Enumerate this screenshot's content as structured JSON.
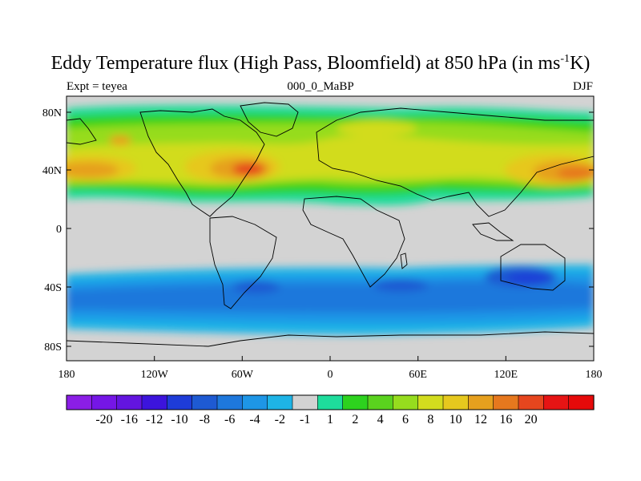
{
  "title": {
    "main": "Eddy Temperature flux (High Pass, Bloomfield) at 850 hPa (in ms",
    "sup": "-1",
    "tail": "K)"
  },
  "subtitle": {
    "left": "Expt = teyea",
    "center": "000_0_MaBP",
    "right": "DJF"
  },
  "map": {
    "land_color": "#d3d3d3",
    "lat_ticks": [
      "80N",
      "40N",
      "0",
      "40S",
      "80S"
    ],
    "lat_values": [
      80,
      40,
      0,
      -40,
      -80
    ],
    "lon_ticks": [
      "180",
      "120W",
      "60W",
      "0",
      "60E",
      "120E",
      "180"
    ],
    "lon_values": [
      -180,
      -120,
      -60,
      0,
      60,
      120,
      180
    ]
  },
  "colorbar": {
    "colors": [
      "#8b1ee6",
      "#7516e6",
      "#6315df",
      "#3c14dc",
      "#1e3cd8",
      "#1e5ad2",
      "#1e78dc",
      "#1e96e6",
      "#1eb4e6",
      "#d2d2d2",
      "#1edc9c",
      "#2dd21e",
      "#5ad21e",
      "#96dc1e",
      "#d2dc1e",
      "#e6c81e",
      "#e6a01e",
      "#e6781e",
      "#e6461e",
      "#e61414",
      "#e60a0a"
    ],
    "labels": [
      "-20",
      "-16",
      "-12",
      "-10",
      "-8",
      "-6",
      "-4",
      "-2",
      "-1",
      "1",
      "2",
      "4",
      "6",
      "8",
      "10",
      "12",
      "16",
      "20"
    ]
  }
}
